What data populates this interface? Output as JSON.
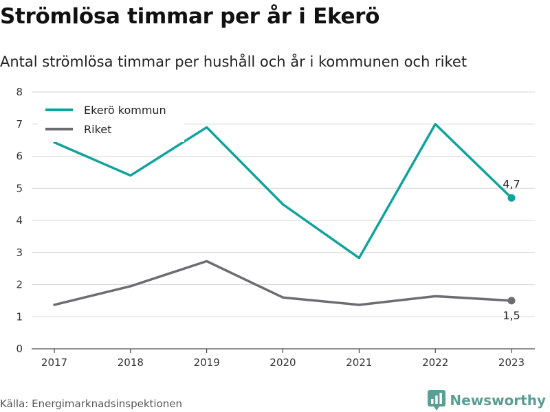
{
  "title": "Strömlösa timmar per år i Ekerö",
  "subtitle": "Antal strömlösa timmar per hushåll och år i kommunen och riket",
  "source": "Källa: Energimarknadsinspektionen",
  "brand": {
    "name": "Newsworthy",
    "icon": "newsworthy-logo-icon",
    "color": "#5a9e94"
  },
  "chart_data": {
    "type": "line",
    "x": [
      "2017",
      "2018",
      "2019",
      "2020",
      "2021",
      "2022",
      "2023"
    ],
    "ylim": [
      0,
      8
    ],
    "yticks": [
      0,
      1,
      2,
      3,
      4,
      5,
      6,
      7,
      8
    ],
    "grid": true,
    "legend_position": "top-left",
    "series": [
      {
        "name": "Ekerö kommun",
        "color": "#0fa39b",
        "values": [
          6.43,
          5.4,
          6.9,
          4.5,
          2.83,
          7.0,
          4.7
        ],
        "end_label": "4,7"
      },
      {
        "name": "Riket",
        "color": "#6d6c72",
        "values": [
          1.37,
          1.95,
          2.73,
          1.6,
          1.37,
          1.64,
          1.5
        ],
        "end_label": "1,5"
      }
    ]
  }
}
